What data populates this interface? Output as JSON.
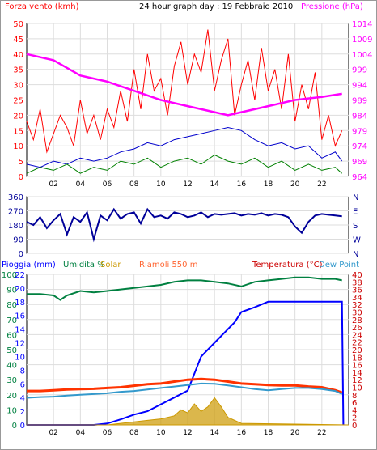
{
  "header": {
    "wind_label": "Forza vento (kmh)",
    "title": "24 hour graph day : 19 Febbraio 2010",
    "pressure_label": "Pressione (hPa)"
  },
  "lower_header": {
    "rain_label": "Pioggia (mm)",
    "humidity_label": "Umidita %",
    "solar_label": "Solar",
    "station_label": "Riamoli 550 m",
    "temp_label": "Temperatura (°C)",
    "dew_label": "Dew Point"
  },
  "colors": {
    "wind": "#ff0000",
    "wind_avg": "#0000cc",
    "wind_min": "#008000",
    "pressure": "#ff00ff",
    "direction": "#000099",
    "humidity": "#008040",
    "rain": "#0000ff",
    "temperature": "#ff3300",
    "dew": "#3399cc",
    "solar": "#cc9900",
    "grid": "#dddddd"
  },
  "chart_data": [
    {
      "type": "line",
      "name": "wind-pressure",
      "x_ticks": [
        "02",
        "04",
        "06",
        "08",
        "10",
        "12",
        "14",
        "16",
        "18",
        "20",
        "22"
      ],
      "xlim": [
        0,
        24
      ],
      "ylim": [
        0,
        50
      ],
      "y_ticks": [
        0,
        5,
        10,
        15,
        20,
        25,
        30,
        35,
        40,
        45,
        50
      ],
      "y2lim": [
        964,
        1014
      ],
      "y2_ticks": [
        964,
        969,
        974,
        979,
        984,
        989,
        994,
        999,
        1004,
        1009,
        1014
      ],
      "series": [
        {
          "key": "gust",
          "x": [
            0,
            0.5,
            1,
            1.5,
            2,
            2.5,
            3,
            3.5,
            4,
            4.5,
            5,
            5.5,
            6,
            6.5,
            7,
            7.5,
            8,
            8.5,
            9,
            9.5,
            10,
            10.5,
            11,
            11.5,
            12,
            12.5,
            13,
            13.5,
            14,
            14.5,
            15,
            15.5,
            16,
            16.5,
            17,
            17.5,
            18,
            18.5,
            19,
            19.5,
            20,
            20.5,
            21,
            21.5,
            22,
            22.5,
            23,
            23.5
          ],
          "y": [
            18,
            12,
            22,
            8,
            14,
            20,
            16,
            10,
            25,
            14,
            20,
            12,
            22,
            16,
            28,
            18,
            35,
            22,
            40,
            28,
            32,
            20,
            36,
            44,
            30,
            40,
            34,
            48,
            28,
            38,
            45,
            20,
            30,
            38,
            25,
            42,
            28,
            35,
            22,
            40,
            18,
            30,
            22,
            34,
            12,
            20,
            10,
            15
          ]
        },
        {
          "key": "average",
          "x": [
            0,
            1,
            2,
            3,
            4,
            5,
            6,
            7,
            8,
            9,
            10,
            11,
            12,
            13,
            14,
            15,
            16,
            17,
            18,
            19,
            20,
            21,
            22,
            23,
            23.5
          ],
          "y": [
            4,
            3,
            5,
            4,
            6,
            5,
            6,
            8,
            9,
            11,
            10,
            12,
            13,
            14,
            15,
            16,
            15,
            12,
            10,
            11,
            9,
            10,
            6,
            8,
            5
          ]
        },
        {
          "key": "minimum",
          "x": [
            0,
            1,
            2,
            3,
            4,
            5,
            6,
            7,
            8,
            9,
            10,
            11,
            12,
            13,
            14,
            15,
            16,
            17,
            18,
            19,
            20,
            21,
            22,
            23,
            23.5
          ],
          "y": [
            1,
            3,
            2,
            4,
            1,
            3,
            2,
            5,
            4,
            6,
            3,
            5,
            6,
            4,
            7,
            5,
            4,
            6,
            3,
            5,
            2,
            4,
            2,
            3,
            1
          ]
        },
        {
          "key": "pressure",
          "x": [
            0,
            2,
            4,
            6,
            8,
            10,
            12,
            14,
            15,
            16,
            18,
            20,
            22,
            23.5
          ],
          "y": [
            1004,
            1002,
            997,
            995,
            992,
            989,
            987,
            985,
            984,
            985,
            987,
            989,
            990,
            991
          ]
        }
      ]
    },
    {
      "type": "scatter",
      "name": "wind-direction",
      "y_ticks": [
        0,
        90,
        180,
        270,
        360
      ],
      "ylim": [
        0,
        360
      ],
      "right_labels": [
        "N",
        "W",
        "S",
        "E",
        "N"
      ],
      "x": [
        0,
        0.5,
        1,
        1.5,
        2,
        2.5,
        3,
        3.5,
        4,
        4.5,
        5,
        5.5,
        6,
        6.5,
        7,
        7.5,
        8,
        8.5,
        9,
        9.5,
        10,
        10.5,
        11,
        11.5,
        12,
        12.5,
        13,
        13.5,
        14,
        14.5,
        15,
        15.5,
        16,
        16.5,
        17,
        17.5,
        18,
        18.5,
        19,
        19.5,
        20,
        20.5,
        21,
        21.5,
        22,
        22.5,
        23,
        23.5
      ],
      "y": [
        200,
        180,
        230,
        160,
        210,
        250,
        120,
        230,
        200,
        260,
        90,
        240,
        210,
        280,
        220,
        250,
        260,
        190,
        280,
        230,
        240,
        220,
        260,
        250,
        230,
        240,
        260,
        230,
        250,
        245,
        250,
        255,
        240,
        250,
        245,
        255,
        240,
        250,
        245,
        230,
        170,
        130,
        200,
        240,
        250,
        245,
        240,
        235
      ]
    },
    {
      "type": "line",
      "name": "rain-humidity-temp",
      "x_ticks": [
        "02",
        "04",
        "06",
        "08",
        "10",
        "12",
        "14",
        "16",
        "18",
        "20",
        "22"
      ],
      "xlim": [
        0,
        24
      ],
      "y_ticks": [
        0,
        10,
        20,
        30,
        40,
        50,
        60,
        70,
        80,
        90,
        100
      ],
      "ylim_left": [
        0,
        100
      ],
      "y_ticks_rain": [
        0,
        2,
        4,
        6,
        8,
        10,
        12,
        14,
        16,
        18,
        20,
        22
      ],
      "ylim_rain": [
        0,
        22
      ],
      "y_ticks_temp": [
        0,
        2,
        4,
        6,
        8,
        10,
        12,
        14,
        16,
        18,
        20,
        22,
        24,
        26,
        28,
        30,
        32,
        34,
        36,
        38,
        40
      ],
      "ylim_temp": [
        0,
        40
      ],
      "series": [
        {
          "key": "humidity",
          "x": [
            0,
            1,
            2,
            2.5,
            3,
            4,
            5,
            6,
            7,
            8,
            9,
            10,
            11,
            12,
            13,
            14,
            15,
            16,
            17,
            18,
            19,
            20,
            21,
            22,
            23,
            23.5
          ],
          "y": [
            87,
            87,
            86,
            83,
            86,
            89,
            88,
            89,
            90,
            91,
            92,
            93,
            95,
            96,
            96,
            95,
            94,
            92,
            95,
            96,
            97,
            98,
            98,
            97,
            97,
            96
          ]
        },
        {
          "key": "rain",
          "x": [
            0,
            2,
            4,
            5,
            6,
            7,
            8,
            9,
            10,
            11,
            12,
            13,
            14,
            15,
            15.5,
            16,
            17,
            18,
            19,
            20,
            21,
            22,
            23,
            23.5,
            23.6
          ],
          "y": [
            0,
            0,
            0,
            0,
            0.2,
            0.8,
            1.5,
            2,
            3,
            4,
            5,
            10,
            12,
            14,
            15,
            16.5,
            17.2,
            18,
            18,
            18,
            18,
            18,
            18,
            18,
            0
          ]
        },
        {
          "key": "temperature",
          "x": [
            0,
            1,
            2,
            3,
            4,
            5,
            6,
            7,
            8,
            9,
            10,
            11,
            12,
            13,
            14,
            15,
            16,
            17,
            18,
            19,
            20,
            21,
            22,
            23,
            23.5
          ],
          "y": [
            9,
            9,
            9.2,
            9.4,
            9.5,
            9.6,
            9.8,
            10,
            10.4,
            10.8,
            11,
            11.5,
            12,
            12.2,
            12,
            11.5,
            11,
            10.8,
            10.6,
            10.5,
            10.5,
            10.2,
            10,
            9.2,
            8.6
          ]
        },
        {
          "key": "dewpoint",
          "x": [
            0,
            1,
            2,
            3,
            4,
            5,
            6,
            7,
            8,
            9,
            10,
            11,
            12,
            13,
            14,
            15,
            16,
            17,
            18,
            19,
            20,
            21,
            22,
            23,
            23.5
          ],
          "y": [
            7.2,
            7.4,
            7.5,
            7.8,
            8,
            8.2,
            8.4,
            8.8,
            9,
            9.4,
            9.8,
            10.2,
            10.6,
            11,
            10.9,
            10.5,
            10,
            9.5,
            9.2,
            9.5,
            9.8,
            9.8,
            9.5,
            9,
            8.2
          ]
        },
        {
          "key": "solar",
          "x": [
            0,
            6,
            7,
            8,
            9,
            10,
            11,
            11.5,
            12,
            12.5,
            13,
            13.5,
            14,
            14.5,
            15,
            16,
            24
          ],
          "y": [
            0,
            0,
            1,
            2,
            3,
            4,
            6,
            10,
            8,
            14,
            9,
            12,
            18,
            12,
            5,
            1,
            0
          ]
        }
      ]
    }
  ]
}
